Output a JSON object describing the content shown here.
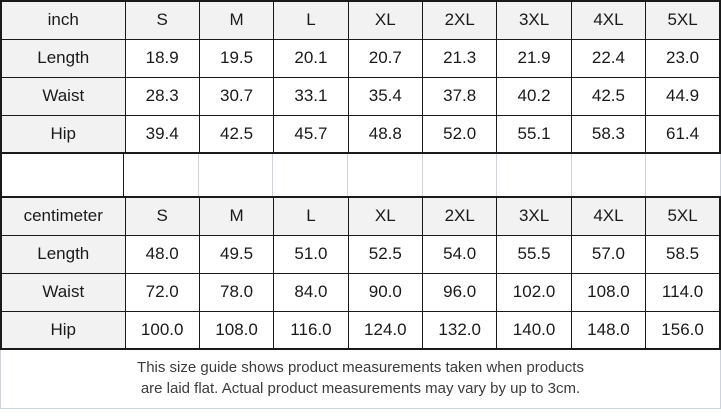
{
  "colors": {
    "dark_border": "#1a1a1a",
    "light_border": "#ccd3e0",
    "shaded_cell_bg": "#f2f2f2",
    "table_text": "#1a1a1a",
    "note_text": "#3b3b3b"
  },
  "tables": [
    {
      "unit_label": "inch",
      "size_headers": [
        "S",
        "M",
        "L",
        "XL",
        "2XL",
        "3XL",
        "4XL",
        "5XL"
      ],
      "rows": [
        {
          "label": "Length",
          "values": [
            "18.9",
            "19.5",
            "20.1",
            "20.7",
            "21.3",
            "21.9",
            "22.4",
            "23.0"
          ]
        },
        {
          "label": "Waist",
          "values": [
            "28.3",
            "30.7",
            "33.1",
            "35.4",
            "37.8",
            "40.2",
            "42.5",
            "44.9"
          ]
        },
        {
          "label": "Hip",
          "values": [
            "39.4",
            "42.5",
            "45.7",
            "48.8",
            "52.0",
            "55.1",
            "58.3",
            "61.4"
          ]
        }
      ]
    },
    {
      "unit_label": "centimeter",
      "size_headers": [
        "S",
        "M",
        "L",
        "XL",
        "2XL",
        "3XL",
        "4XL",
        "5XL"
      ],
      "rows": [
        {
          "label": "Length",
          "values": [
            "48.0",
            "49.5",
            "51.0",
            "52.5",
            "54.0",
            "55.5",
            "57.0",
            "58.5"
          ]
        },
        {
          "label": "Waist",
          "values": [
            "72.0",
            "78.0",
            "84.0",
            "90.0",
            "96.0",
            "102.0",
            "108.0",
            "114.0"
          ]
        },
        {
          "label": "Hip",
          "values": [
            "100.0",
            "108.0",
            "116.0",
            "124.0",
            "132.0",
            "140.0",
            "148.0",
            "156.0"
          ]
        }
      ]
    }
  ],
  "note": {
    "line1": "This size guide shows product measurements taken when products",
    "line2": "are laid flat. Actual product measurements may vary by up to 3cm."
  },
  "chart_data": [
    {
      "type": "table",
      "title": "inch",
      "columns": [
        "inch",
        "S",
        "M",
        "L",
        "XL",
        "2XL",
        "3XL",
        "4XL",
        "5XL"
      ],
      "rows": [
        [
          "Length",
          18.9,
          19.5,
          20.1,
          20.7,
          21.3,
          21.9,
          22.4,
          23.0
        ],
        [
          "Waist",
          28.3,
          30.7,
          33.1,
          35.4,
          37.8,
          40.2,
          42.5,
          44.9
        ],
        [
          "Hip",
          39.4,
          42.5,
          45.7,
          48.8,
          52.0,
          55.1,
          58.3,
          61.4
        ]
      ]
    },
    {
      "type": "table",
      "title": "centimeter",
      "columns": [
        "centimeter",
        "S",
        "M",
        "L",
        "XL",
        "2XL",
        "3XL",
        "4XL",
        "5XL"
      ],
      "rows": [
        [
          "Length",
          48.0,
          49.5,
          51.0,
          52.5,
          54.0,
          55.5,
          57.0,
          58.5
        ],
        [
          "Waist",
          72.0,
          78.0,
          84.0,
          90.0,
          96.0,
          102.0,
          108.0,
          114.0
        ],
        [
          "Hip",
          100.0,
          108.0,
          116.0,
          124.0,
          132.0,
          140.0,
          148.0,
          156.0
        ]
      ]
    }
  ]
}
